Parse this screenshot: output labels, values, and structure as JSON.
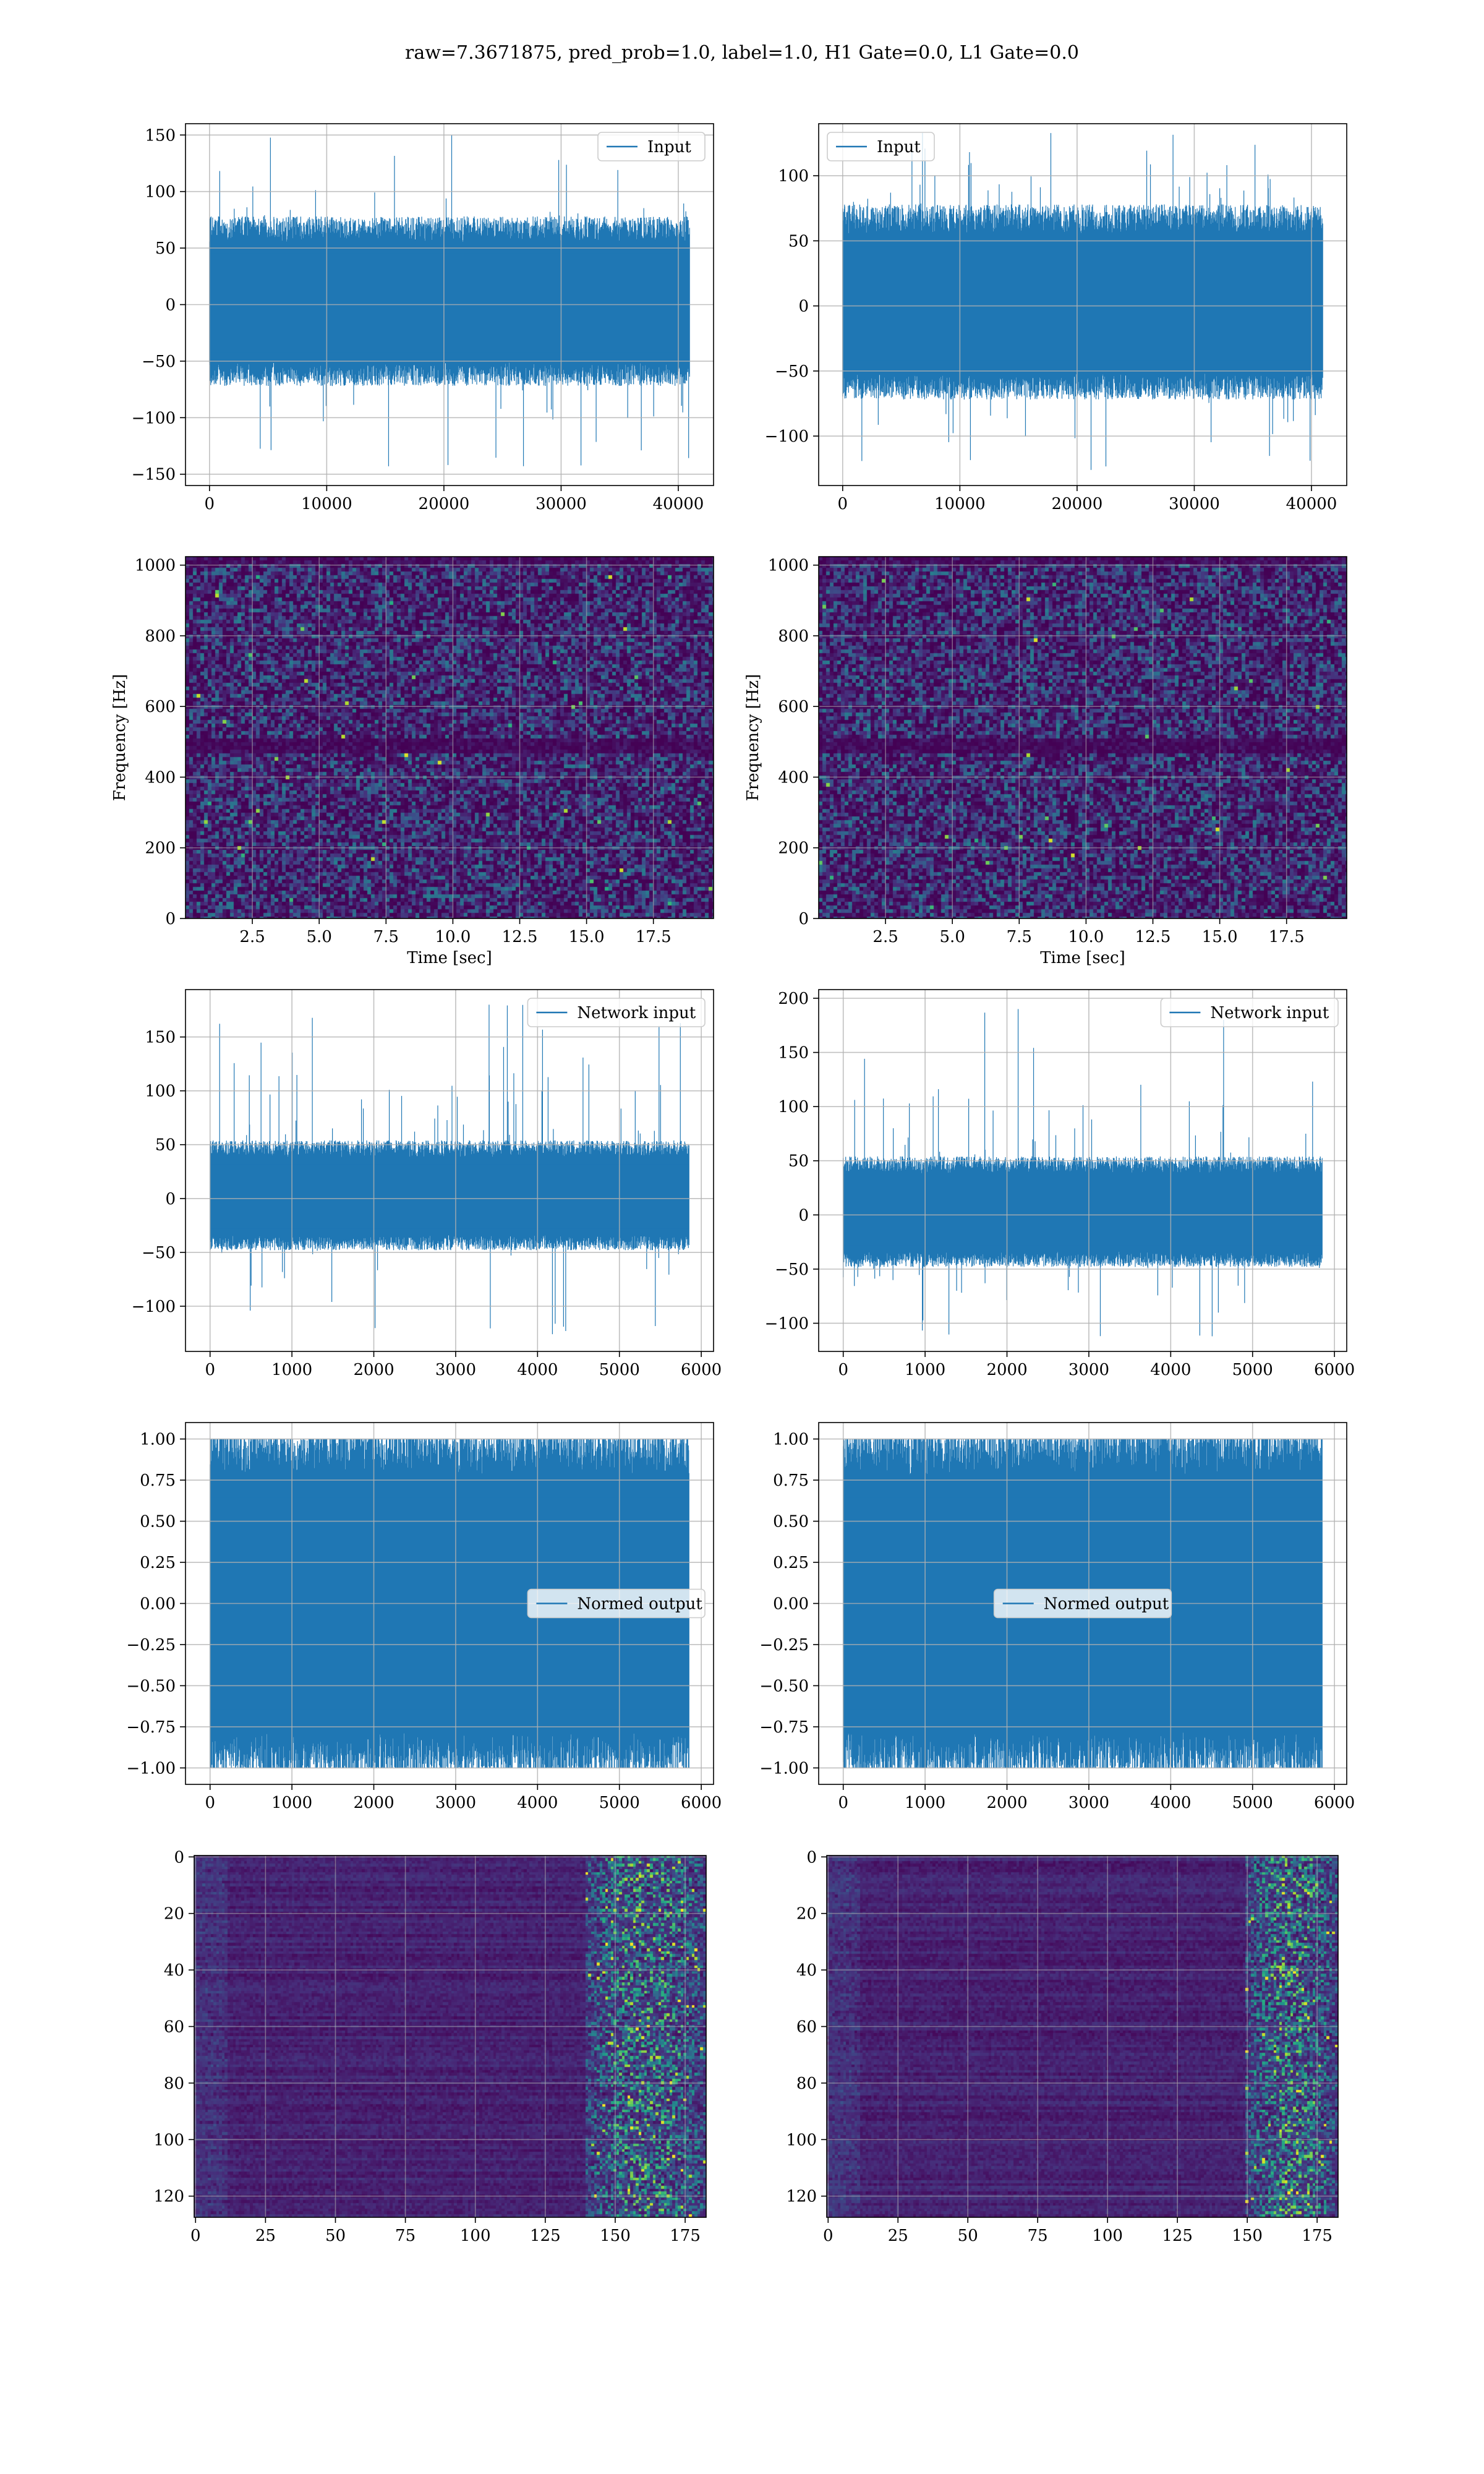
{
  "figure": {
    "suptitle": "raw=7.3671875, pred_prob=1.0, label=1.0, H1 Gate=0.0, L1 Gate=0.0",
    "colors": {
      "line": "#1f77b4",
      "grid": "#b0b0b0",
      "spine": "#000000",
      "legend_edge": "#cccccc",
      "viridis": [
        "#440154",
        "#472c7a",
        "#3b528b",
        "#2c728e",
        "#21918c",
        "#27ad81",
        "#5ec962",
        "#aadc32",
        "#fde725"
      ]
    }
  },
  "chart_data": [
    {
      "id": "input-left",
      "type": "line",
      "series": [
        {
          "name": "Input",
          "envelope": {
            "n": 40960,
            "core_low": -60,
            "core_high": 65,
            "spike_low": -143,
            "spike_high": 150
          }
        }
      ],
      "xlim": [
        -2048,
        43008
      ],
      "ylim": [
        -160,
        160
      ],
      "xticks": [
        0,
        10000,
        20000,
        30000,
        40000
      ],
      "yticks": [
        -150,
        -100,
        -50,
        0,
        50,
        100,
        150
      ],
      "legend": "upper right",
      "grid": true,
      "xlabel": "",
      "ylabel": ""
    },
    {
      "id": "input-right",
      "type": "line",
      "series": [
        {
          "name": "Input",
          "envelope": {
            "n": 40960,
            "core_low": -60,
            "core_high": 65,
            "spike_low": -126,
            "spike_high": 133
          }
        }
      ],
      "xlim": [
        -2048,
        43008
      ],
      "ylim": [
        -138,
        140
      ],
      "xticks": [
        0,
        10000,
        20000,
        30000,
        40000
      ],
      "yticks": [
        -100,
        -50,
        0,
        50,
        100
      ],
      "legend": "upper left",
      "grid": true,
      "xlabel": "",
      "ylabel": ""
    },
    {
      "id": "spectrogram-left",
      "type": "heatmap",
      "xlim": [
        0,
        19.75
      ],
      "ylim": [
        0,
        1024
      ],
      "xticks": [
        2.5,
        5.0,
        7.5,
        10.0,
        12.5,
        15.0,
        17.5
      ],
      "yticks": [
        0,
        200,
        400,
        600,
        800,
        1000
      ],
      "xlabel": "Time [sec]",
      "ylabel": "Frequency [Hz]",
      "grid": true,
      "colormap": "viridis",
      "dark_band_hz": [
        470,
        510
      ]
    },
    {
      "id": "spectrogram-right",
      "type": "heatmap",
      "xlim": [
        0,
        19.75
      ],
      "ylim": [
        0,
        1024
      ],
      "xticks": [
        2.5,
        5.0,
        7.5,
        10.0,
        12.5,
        15.0,
        17.5
      ],
      "yticks": [
        0,
        200,
        400,
        600,
        800,
        1000
      ],
      "xlabel": "Time [sec]",
      "ylabel": "Frequency [Hz]",
      "grid": true,
      "colormap": "viridis",
      "dark_band_hz": [
        470,
        510
      ]
    },
    {
      "id": "network-input-left",
      "type": "line",
      "series": [
        {
          "name": "Network input",
          "envelope": {
            "n": 5850,
            "core_low": -40,
            "core_high": 45,
            "spike_low": -126,
            "spike_high": 180
          }
        }
      ],
      "xlim": [
        -300,
        6150
      ],
      "ylim": [
        -142,
        194
      ],
      "xticks": [
        0,
        1000,
        2000,
        3000,
        4000,
        5000,
        6000
      ],
      "yticks": [
        -100,
        -50,
        0,
        50,
        100,
        150
      ],
      "legend": "upper right",
      "grid": true,
      "xlabel": "",
      "ylabel": ""
    },
    {
      "id": "network-input-right",
      "type": "line",
      "series": [
        {
          "name": "Network input",
          "envelope": {
            "n": 5850,
            "core_low": -40,
            "core_high": 45,
            "spike_low": -112,
            "spike_high": 190
          }
        }
      ],
      "xlim": [
        -300,
        6150
      ],
      "ylim": [
        -126,
        208
      ],
      "xticks": [
        0,
        1000,
        2000,
        3000,
        4000,
        5000,
        6000
      ],
      "yticks": [
        -100,
        -50,
        0,
        50,
        100,
        150,
        200
      ],
      "legend": "upper right",
      "grid": true,
      "xlabel": "",
      "ylabel": ""
    },
    {
      "id": "normed-output-left",
      "type": "line",
      "series": [
        {
          "name": "Normed output",
          "envelope": {
            "n": 5850,
            "core_low": -0.92,
            "core_high": 0.92,
            "spike_low": -1.0,
            "spike_high": 1.0
          }
        }
      ],
      "xlim": [
        -300,
        6150
      ],
      "ylim": [
        -1.1,
        1.1
      ],
      "xticks": [
        0,
        1000,
        2000,
        3000,
        4000,
        5000,
        6000
      ],
      "yticks": [
        -1.0,
        -0.75,
        -0.5,
        -0.25,
        0.0,
        0.25,
        0.5,
        0.75,
        1.0
      ],
      "legend": "center right",
      "grid": true,
      "xlabel": "",
      "ylabel": ""
    },
    {
      "id": "normed-output-right",
      "type": "line",
      "series": [
        {
          "name": "Normed output",
          "envelope": {
            "n": 5850,
            "core_low": -0.92,
            "core_high": 0.92,
            "spike_low": -1.0,
            "spike_high": 1.0
          }
        }
      ],
      "xlim": [
        -300,
        6150
      ],
      "ylim": [
        -1.1,
        1.1
      ],
      "xticks": [
        0,
        1000,
        2000,
        3000,
        4000,
        5000,
        6000
      ],
      "yticks": [
        -1.0,
        -0.75,
        -0.5,
        -0.25,
        0.0,
        0.25,
        0.5,
        0.75,
        1.0
      ],
      "legend": "center",
      "grid": true,
      "xlabel": "",
      "ylabel": ""
    },
    {
      "id": "activation-map-left",
      "type": "heatmap",
      "xlim": [
        -0.5,
        182.5
      ],
      "ylim": [
        127.5,
        -0.5
      ],
      "xticks": [
        0,
        25,
        50,
        75,
        100,
        125,
        150,
        175
      ],
      "yticks": [
        0,
        20,
        40,
        60,
        80,
        100,
        120
      ],
      "grid": true,
      "colormap": "viridis",
      "bright_columns": [
        140,
        182
      ]
    },
    {
      "id": "activation-map-right",
      "type": "heatmap",
      "xlim": [
        -0.5,
        182.5
      ],
      "ylim": [
        127.5,
        -0.5
      ],
      "xticks": [
        0,
        25,
        50,
        75,
        100,
        125,
        150,
        175
      ],
      "yticks": [
        0,
        20,
        40,
        60,
        80,
        100,
        120
      ],
      "grid": true,
      "colormap": "viridis",
      "bright_columns": [
        150,
        182
      ]
    }
  ]
}
